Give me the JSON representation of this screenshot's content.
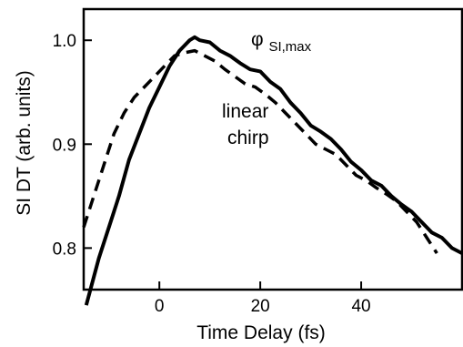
{
  "chart_data": {
    "type": "line",
    "title": "",
    "xlabel": "Time Delay (fs)",
    "ylabel": "SI DT (arb. units)",
    "xlim": [
      -15,
      60
    ],
    "ylim": [
      0.76,
      1.03
    ],
    "xticks": [
      0,
      20,
      40
    ],
    "yticks": [
      0.8,
      0.9,
      1.0
    ],
    "x_tick_labels": [
      "0",
      "20",
      "40"
    ],
    "y_tick_labels": [
      "0.8",
      "0.9",
      "1.0"
    ],
    "grid": false,
    "legend": "none",
    "annotations": {
      "phi_symbol": "φ",
      "phi_subscript": "SI,max",
      "linear_chirp_line1": "linear",
      "linear_chirp_line2": "chirp"
    },
    "series": [
      {
        "style": "solid",
        "x": [
          -14.5,
          -12,
          -10,
          -8,
          -6,
          -4,
          -2,
          0,
          2,
          4,
          6,
          7,
          8,
          10,
          12,
          14,
          16,
          18,
          20,
          22,
          24,
          26,
          28,
          30,
          32,
          34,
          36,
          38,
          40,
          42,
          44,
          46,
          48,
          50,
          52,
          54,
          56,
          58,
          60
        ],
        "y": [
          0.745,
          0.79,
          0.82,
          0.85,
          0.885,
          0.91,
          0.935,
          0.955,
          0.975,
          0.99,
          1.0,
          1.003,
          1.0,
          0.998,
          0.99,
          0.985,
          0.978,
          0.972,
          0.97,
          0.96,
          0.953,
          0.94,
          0.93,
          0.918,
          0.912,
          0.905,
          0.895,
          0.883,
          0.875,
          0.865,
          0.86,
          0.85,
          0.842,
          0.835,
          0.825,
          0.815,
          0.81,
          0.8,
          0.795
        ]
      },
      {
        "style": "dashed",
        "x": [
          -15,
          -13,
          -11,
          -9,
          -7,
          -5,
          -3,
          -1,
          1,
          3,
          5,
          7,
          9,
          11,
          13,
          15,
          17,
          19,
          21,
          23,
          25,
          27,
          29,
          31,
          33,
          35,
          37,
          39,
          41,
          43,
          45,
          47,
          49,
          51,
          53,
          55
        ],
        "y": [
          0.82,
          0.85,
          0.88,
          0.91,
          0.93,
          0.945,
          0.955,
          0.965,
          0.975,
          0.985,
          0.988,
          0.99,
          0.985,
          0.98,
          0.972,
          0.965,
          0.958,
          0.955,
          0.948,
          0.94,
          0.93,
          0.92,
          0.91,
          0.9,
          0.895,
          0.89,
          0.88,
          0.87,
          0.865,
          0.858,
          0.852,
          0.845,
          0.835,
          0.825,
          0.81,
          0.795
        ]
      }
    ]
  }
}
